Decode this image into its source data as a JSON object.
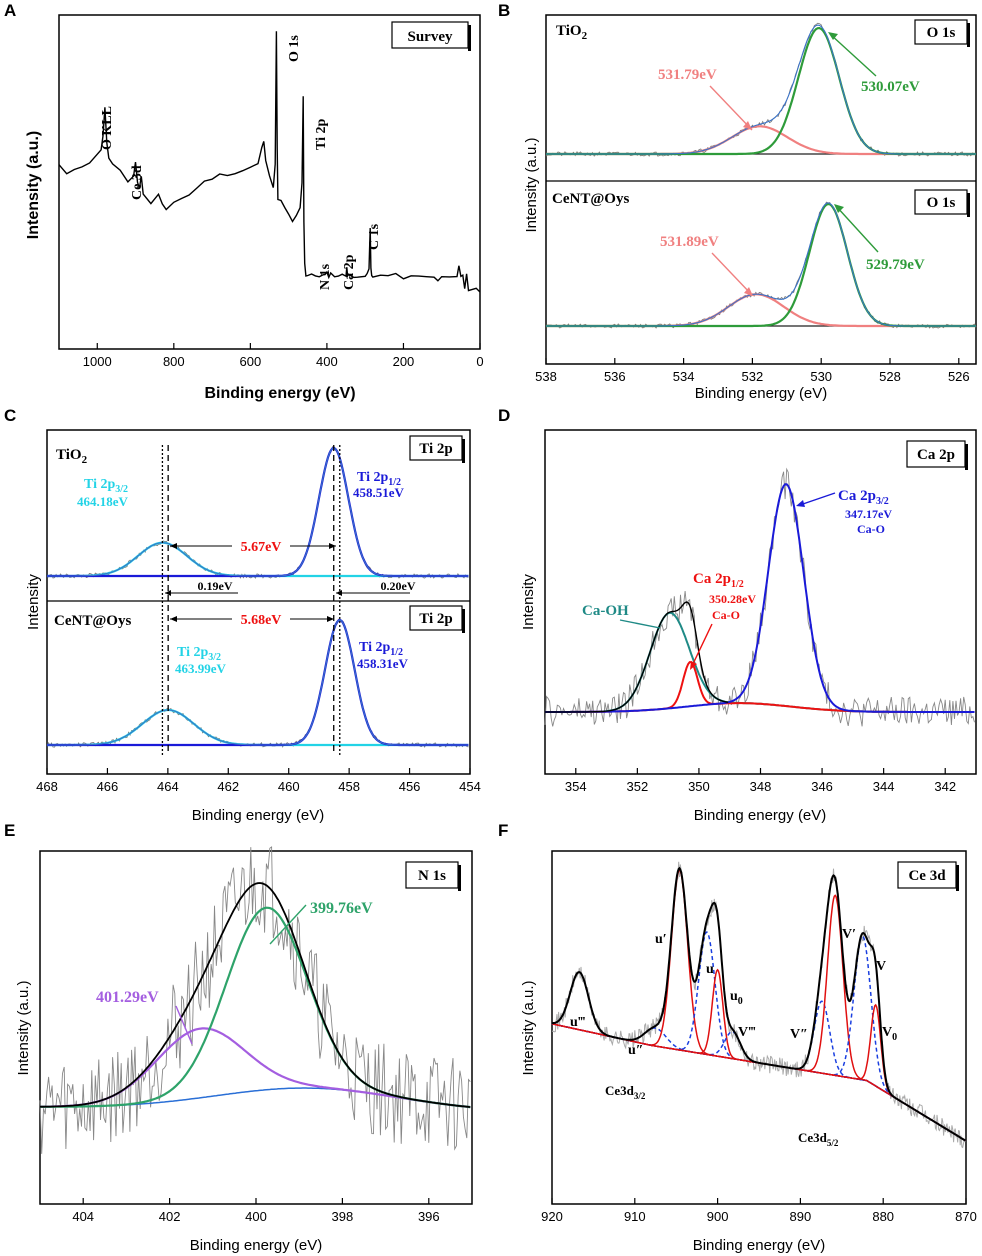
{
  "chart_data": [
    {
      "id": "A",
      "type": "line",
      "panel_letter": "A",
      "title": "Survey",
      "xlabel": "Binding energy (eV)",
      "ylabel": "Intensity (a.u.)",
      "xlim": [
        1100,
        0
      ],
      "ylim": [
        0,
        100
      ],
      "xticks": [
        "1000",
        "800",
        "600",
        "400",
        "200",
        "0"
      ],
      "xtick_values": [
        1000,
        800,
        600,
        400,
        200,
        0
      ],
      "series": [
        {
          "name": "Survey",
          "color": "#000000",
          "x": [
            1100,
            1080,
            1060,
            1040,
            1020,
            1000,
            990,
            985,
            980,
            975,
            970,
            960,
            940,
            920,
            905,
            900,
            895,
            890,
            885,
            880,
            860,
            840,
            830,
            820,
            800,
            780,
            760,
            740,
            720,
            700,
            680,
            660,
            640,
            620,
            600,
            580,
            570,
            565,
            560,
            550,
            540,
            535,
            532,
            530,
            528,
            520,
            510,
            500,
            490,
            480,
            470,
            465,
            462,
            460,
            458,
            455,
            450,
            440,
            430,
            420,
            410,
            405,
            400,
            395,
            390,
            380,
            370,
            360,
            350,
            348,
            346,
            344,
            340,
            330,
            320,
            300,
            295,
            290,
            287,
            285,
            283,
            280,
            260,
            240,
            220,
            200,
            180,
            160,
            140,
            120,
            110,
            100,
            80,
            60,
            55,
            50,
            45,
            40,
            35,
            30,
            20,
            10,
            0
          ],
          "y": [
            55,
            52,
            54,
            55,
            56,
            58,
            60,
            64,
            72,
            62,
            57,
            55,
            53,
            50,
            52,
            56,
            50,
            48,
            52,
            46,
            44,
            46,
            44,
            42,
            44,
            45,
            46,
            48,
            50,
            51,
            52,
            52.5,
            53,
            53.5,
            54,
            56,
            60,
            62,
            56,
            52,
            48,
            55,
            95,
            60,
            45,
            44,
            42,
            40,
            38,
            40,
            42,
            50,
            76,
            38,
            26,
            22,
            22,
            22,
            22,
            22,
            22,
            22,
            22.5,
            22,
            22.5,
            22,
            22,
            22,
            22,
            25,
            22,
            22,
            22,
            22,
            22,
            22,
            22,
            24,
            36,
            24,
            22,
            22,
            22,
            22,
            22,
            21.5,
            21.5,
            21.5,
            21.5,
            22,
            20,
            21.5,
            21.5,
            21.5,
            25,
            21.5,
            22,
            18,
            22,
            18,
            18,
            18,
            17
          ]
        }
      ],
      "annotations": [
        "O KLL",
        "Ce 3d",
        "O 1s",
        "Ti 2p",
        "N 1s",
        "Ca 2p",
        "C 1s"
      ]
    },
    {
      "id": "B",
      "type": "line",
      "panel_letter": "B",
      "xlabel": "Binding energy (eV)",
      "ylabel": "Intensity (a.u.)",
      "xlim": [
        538,
        525.5
      ],
      "xticks": [
        "538",
        "536",
        "534",
        "532",
        "530",
        "528",
        "526"
      ],
      "xtick_values": [
        538,
        536,
        534,
        532,
        530,
        528,
        526
      ],
      "subplots": [
        {
          "sample": "TiO₂",
          "label": "O 1s",
          "peaks": [
            {
              "name": "531.79eV",
              "center": 531.79,
              "height": 0.22,
              "fwhm": 1.9,
              "color": "#f08080"
            },
            {
              "name": "530.07eV",
              "center": 530.07,
              "height": 1.0,
              "fwhm": 1.4,
              "color": "#2e9b3a"
            }
          ]
        },
        {
          "sample": "CeNT@Oys",
          "label": "O 1s",
          "peaks": [
            {
              "name": "531.89eV",
              "center": 531.89,
              "height": 0.26,
              "fwhm": 1.9,
              "color": "#f08080"
            },
            {
              "name": "529.79eV",
              "center": 529.79,
              "height": 1.0,
              "fwhm": 1.3,
              "color": "#2e9b3a"
            }
          ]
        }
      ]
    },
    {
      "id": "C",
      "type": "line",
      "panel_letter": "C",
      "xlabel": "Binding energy (eV)",
      "ylabel": "Intensity",
      "xlim": [
        468,
        454
      ],
      "xticks": [
        "468",
        "466",
        "464",
        "462",
        "460",
        "458",
        "456",
        "454"
      ],
      "xtick_values": [
        468,
        466,
        464,
        462,
        460,
        458,
        456,
        454
      ],
      "subplots": [
        {
          "sample": "TiO₂",
          "label": "Ti 2p",
          "peaks": [
            {
              "name": "Ti 2p3/2",
              "value": "464.18eV",
              "center": 464.18,
              "height": 0.26,
              "fwhm": 1.9,
              "color": "#22d3e6"
            },
            {
              "name": "Ti 2p1/2",
              "value": "458.51eV",
              "center": 458.51,
              "height": 1.0,
              "fwhm": 1.15,
              "color": "#1a1ad8"
            }
          ],
          "splitting": "5.67eV"
        },
        {
          "sample": "CeNT@Oys",
          "label": "Ti 2p",
          "peaks": [
            {
              "name": "Ti 2p3/2",
              "value": "463.99eV",
              "center": 463.99,
              "height": 0.28,
              "fwhm": 2.0,
              "color": "#22d3e6"
            },
            {
              "name": "Ti 2p1/2",
              "value": "458.31eV",
              "center": 458.31,
              "height": 1.0,
              "fwhm": 1.15,
              "color": "#1a1ad8"
            }
          ],
          "splitting": "5.68eV"
        }
      ],
      "shifts": [
        "0.19eV",
        "0.20eV"
      ]
    },
    {
      "id": "D",
      "type": "line",
      "panel_letter": "D",
      "title": "Ca 2p",
      "xlabel": "Binding energy (eV)",
      "ylabel": "Intensity",
      "xlim": [
        355,
        341
      ],
      "xticks": [
        "354",
        "352",
        "350",
        "348",
        "346",
        "344",
        "342"
      ],
      "xtick_values": [
        354,
        352,
        350,
        348,
        346,
        344,
        342
      ],
      "peaks": [
        {
          "name": "Ca-OH",
          "center": 350.95,
          "height": 0.43,
          "fwhm": 1.5,
          "color": "#1f8a86"
        },
        {
          "name": "Ca 2p1/2",
          "value": "350.28eV",
          "sub": "Ca-O",
          "center": 350.28,
          "height": 0.2,
          "fwhm": 0.55,
          "color": "#ee1111"
        },
        {
          "name": "Ca 2p3/2",
          "value": "347.17eV",
          "sub": "Ca-O",
          "center": 347.17,
          "height": 1.0,
          "fwhm": 1.35,
          "color": "#1a1ad8"
        }
      ]
    },
    {
      "id": "E",
      "type": "line",
      "panel_letter": "E",
      "title": "N 1s",
      "xlabel": "Binding energy (eV)",
      "ylabel": "Intensity (a.u.)",
      "xlim": [
        405,
        395
      ],
      "xticks": [
        "404",
        "402",
        "400",
        "398",
        "396"
      ],
      "xtick_values": [
        404,
        402,
        400,
        398,
        396
      ],
      "peaks": [
        {
          "name": "401.29eV",
          "center": 401.29,
          "height": 0.38,
          "fwhm": 2.4,
          "color": "#a45ee0"
        },
        {
          "name": "399.76eV",
          "center": 399.76,
          "height": 1.0,
          "fwhm": 2.2,
          "color": "#2ea36a"
        }
      ]
    },
    {
      "id": "F",
      "type": "line",
      "panel_letter": "F",
      "title": "Ce 3d",
      "xlabel": "Binding energy (eV)",
      "ylabel": "Intensity (a.u.)",
      "xlim": [
        920,
        870
      ],
      "xticks": [
        "920",
        "910",
        "900",
        "890",
        "880",
        "870"
      ],
      "xtick_values": [
        920,
        910,
        900,
        890,
        880,
        870
      ],
      "peaks": [
        {
          "name": "u‴",
          "center": 916.7,
          "height": 0.32,
          "fwhm": 2.6,
          "style": "dashed"
        },
        {
          "name": "u″",
          "center": 907.5,
          "height": 0.1,
          "fwhm": 3.0,
          "style": "dashed"
        },
        {
          "name": "u′",
          "center": 904.6,
          "height": 1.0,
          "fwhm": 2.3,
          "style": "solid"
        },
        {
          "name": "u",
          "center": 901.3,
          "height": 0.68,
          "fwhm": 2.3,
          "style": "dashed"
        },
        {
          "name": "u₀",
          "center": 900.0,
          "height": 0.48,
          "fwhm": 1.5,
          "style": "solid"
        },
        {
          "name": "V‴",
          "center": 898.2,
          "height": 0.15,
          "fwhm": 2.2,
          "style": "dashed"
        },
        {
          "name": "V″",
          "center": 887.4,
          "height": 0.4,
          "fwhm": 2.2,
          "style": "dashed"
        },
        {
          "name": "V′",
          "center": 885.8,
          "height": 1.0,
          "fwhm": 2.2,
          "style": "solid"
        },
        {
          "name": "V",
          "center": 882.5,
          "height": 0.8,
          "fwhm": 2.4,
          "style": "dashed"
        },
        {
          "name": "V₀",
          "center": 880.9,
          "height": 0.45,
          "fwhm": 1.4,
          "style": "solid"
        }
      ],
      "region_labels": [
        "Ce3d₃/₂",
        "Ce3d₅/₂"
      ]
    }
  ],
  "labels": {
    "A": {
      "letter": "A",
      "box": "Survey",
      "ylabel": "Intensity (a.u.)",
      "xlabel": "Binding energy (eV)",
      "okll": "O KLL",
      "ce3d": "Ce 3d",
      "o1s": "O 1s",
      "ti2p": "Ti 2p",
      "n1s": "N 1s",
      "ca2p": "Ca 2p",
      "c1s": "C 1s"
    },
    "B": {
      "letter": "B",
      "ylabel": "Intensity (a.u.)",
      "xlabel": "Binding energy (eV)",
      "top_sample": "TiO",
      "top_sample_sub": "2",
      "top_box": "O 1s",
      "top_p1": "531.79eV",
      "top_p2": "530.07eV",
      "bot_sample": "CeNT@Oys",
      "bot_box": "O 1s",
      "bot_p1": "531.89eV",
      "bot_p2": "529.79eV"
    },
    "C": {
      "letter": "C",
      "ylabel": "Intensity",
      "xlabel": "Binding energy (eV)",
      "top_sample": "TiO",
      "top_sample_sub": "2",
      "top_box": "Ti 2p",
      "p32_main": "Ti 2p",
      "p32_sub": "3/2",
      "p12_sub": "1/2",
      "top_p32_val": "464.18eV",
      "top_p12_val": "458.51eV",
      "top_split": "5.67eV",
      "shift_left": "0.19eV",
      "shift_right": "0.20eV",
      "bot_sample": "CeNT@Oys",
      "bot_box": "Ti 2p",
      "bot_p32_val": "463.99eV",
      "bot_p12_val": "458.31eV",
      "bot_split": "5.68eV"
    },
    "D": {
      "letter": "D",
      "box": "Ca 2p",
      "ylabel": "Intensity",
      "xlabel": "Binding energy (eV)",
      "caoh": "Ca-OH",
      "ca_main": "Ca 2p",
      "sub12": "1/2",
      "sub32": "3/2",
      "p12_val": "350.28eV",
      "p12_sub": "Ca-O",
      "p32_val": "347.17eV",
      "p32_sub": "Ca-O"
    },
    "E": {
      "letter": "E",
      "box": "N 1s",
      "ylabel": "Intensity (a.u.)",
      "xlabel": "Binding energy (eV)",
      "p1": "401.29eV",
      "p2": "399.76eV"
    },
    "F": {
      "letter": "F",
      "box": "Ce 3d",
      "ylabel": "Intensity (a.u.)",
      "xlabel": "Binding energy (eV)",
      "u3": "u‴",
      "u2": "u″",
      "u1": "u′",
      "u": "u",
      "u0": "u",
      "u0_sub": "0",
      "v3": "V‴",
      "v2": "V″",
      "v1": "V′",
      "v": "V",
      "v0": "V",
      "v0_sub": "0",
      "ce32": "Ce3d",
      "ce32_sub": "3/2",
      "ce52": "Ce3d",
      "ce52_sub": "5/2"
    }
  }
}
